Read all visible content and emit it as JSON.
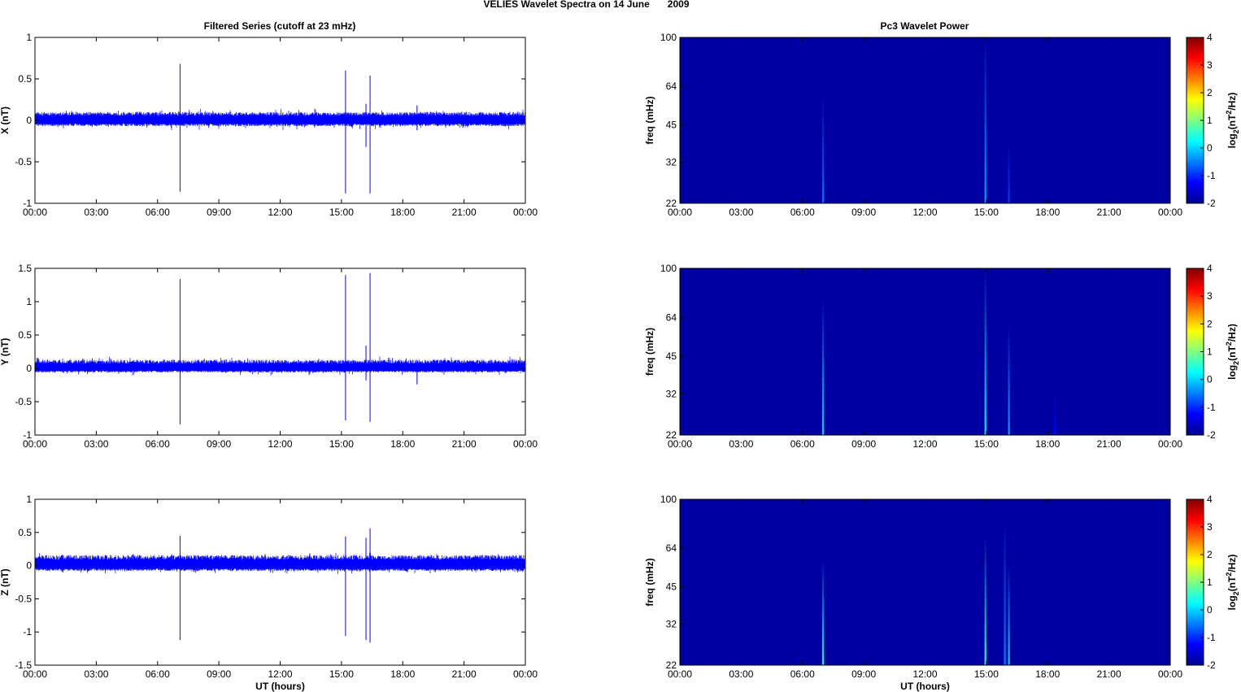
{
  "figure": {
    "suptitle_prefix": "VELIES Wavelet Spectra on 14 June",
    "suptitle_year": "2009",
    "left_title": "Filtered Series (cutoff at 23 mHz)",
    "right_title": "Pc3 Wavelet Power",
    "x_label": "UT (hours)",
    "x_ticks": [
      "00:00",
      "03:00",
      "06:00",
      "09:00",
      "12:00",
      "15:00",
      "18:00",
      "21:00",
      "00:00"
    ],
    "freq_label": "freq (mHz)",
    "freq_ticks": [
      "22",
      "32",
      "45",
      "64",
      "100"
    ],
    "colorbar_label_prefix": "log",
    "colorbar_label_sub": "2",
    "colorbar_label_mid": "(nT",
    "colorbar_label_sup": "2",
    "colorbar_label_suffix": "/Hz)",
    "colorbar_ticks": [
      "-2",
      "-1",
      "0",
      "1",
      "2",
      "3",
      "4"
    ]
  },
  "colors": {
    "series_line": "#0000ff",
    "spectrogram_background": "#00008f"
  },
  "chart_data": [
    {
      "type": "line",
      "component": "X",
      "ylabel": "X (nT)",
      "y_ticks": [
        "-1",
        "-0.5",
        "0",
        "0.5",
        "1"
      ],
      "ylim": [
        -1,
        1
      ],
      "xlim_hours": [
        0,
        24
      ],
      "noise_band": [
        -0.07,
        0.1
      ],
      "spikes": [
        {
          "t": 7.1,
          "ymax": 0.68,
          "ymin": -0.86
        },
        {
          "t": 15.2,
          "ymax": 0.6,
          "ymin": -0.88
        },
        {
          "t": 16.4,
          "ymax": 0.54,
          "ymin": -0.88
        },
        {
          "t": 16.2,
          "ymax": 0.2,
          "ymin": -0.32
        },
        {
          "t": 18.7,
          "ymax": 0.18,
          "ymin": -0.12
        }
      ]
    },
    {
      "type": "line",
      "component": "Y",
      "ylabel": "Y (nT)",
      "y_ticks": [
        "-1",
        "-0.5",
        "0",
        "0.5",
        "1",
        "1.5"
      ],
      "ylim": [
        -1,
        1.5
      ],
      "xlim_hours": [
        0,
        24
      ],
      "noise_band": [
        -0.06,
        0.13
      ],
      "spikes": [
        {
          "t": 7.1,
          "ymax": 1.34,
          "ymin": -0.84
        },
        {
          "t": 15.2,
          "ymax": 1.4,
          "ymin": -0.78
        },
        {
          "t": 16.4,
          "ymax": 1.43,
          "ymin": -0.8
        },
        {
          "t": 16.2,
          "ymax": 0.34,
          "ymin": -0.18
        },
        {
          "t": 18.7,
          "ymax": 0.1,
          "ymin": -0.24
        }
      ]
    },
    {
      "type": "line",
      "component": "Z",
      "ylabel": "Z (nT)",
      "y_ticks": [
        "-1.5",
        "-1",
        "-0.5",
        "0",
        "0.5",
        "1"
      ],
      "ylim": [
        -1.5,
        1
      ],
      "xlim_hours": [
        0,
        24
      ],
      "noise_band": [
        -0.08,
        0.16
      ],
      "spikes": [
        {
          "t": 7.1,
          "ymax": 0.45,
          "ymin": -1.12
        },
        {
          "t": 15.2,
          "ymax": 0.44,
          "ymin": -1.06
        },
        {
          "t": 16.2,
          "ymax": 0.42,
          "ymin": -1.12
        },
        {
          "t": 16.4,
          "ymax": 0.56,
          "ymin": -1.16
        }
      ]
    },
    {
      "type": "heatmap",
      "component": "X",
      "ylim_mhz": [
        22,
        100
      ],
      "xlim_hours": [
        0,
        24
      ],
      "clim": [
        -2,
        4
      ],
      "background_value": -1.8,
      "streaks": [
        {
          "t": 7.0,
          "fmax": 60,
          "value": -0.6
        },
        {
          "t": 14.95,
          "fmax": 100,
          "value": -0.3
        },
        {
          "t": 16.1,
          "fmax": 38,
          "value": -0.9
        }
      ]
    },
    {
      "type": "heatmap",
      "component": "Y",
      "ylim_mhz": [
        22,
        100
      ],
      "xlim_hours": [
        0,
        24
      ],
      "clim": [
        -2,
        4
      ],
      "background_value": -1.8,
      "streaks": [
        {
          "t": 7.0,
          "fmax": 75,
          "value": 0.0
        },
        {
          "t": 14.95,
          "fmax": 100,
          "value": 0.2
        },
        {
          "t": 16.1,
          "fmax": 60,
          "value": -0.3
        },
        {
          "t": 18.35,
          "fmax": 32,
          "value": -1.2
        }
      ]
    },
    {
      "type": "heatmap",
      "component": "Z",
      "ylim_mhz": [
        22,
        100
      ],
      "xlim_hours": [
        0,
        24
      ],
      "clim": [
        -2,
        4
      ],
      "background_value": -1.8,
      "streaks": [
        {
          "t": 7.0,
          "fmax": 58,
          "value": 0.3
        },
        {
          "t": 14.95,
          "fmax": 72,
          "value": 0.5
        },
        {
          "t": 15.9,
          "fmax": 82,
          "value": -0.5
        },
        {
          "t": 16.1,
          "fmax": 55,
          "value": 0.0
        }
      ]
    }
  ]
}
